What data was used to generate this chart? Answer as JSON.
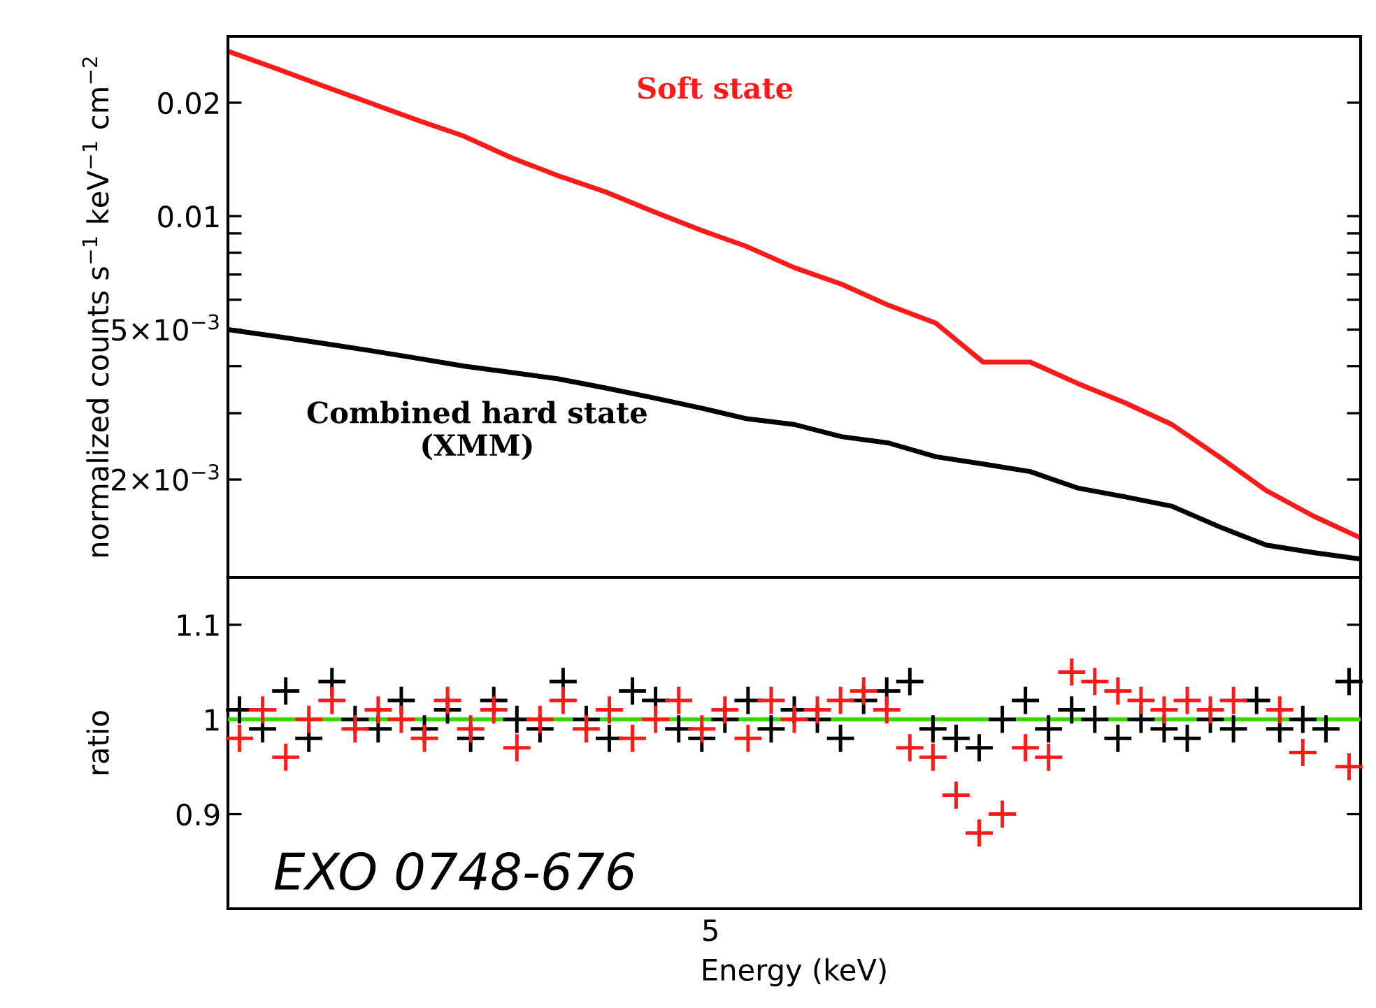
{
  "chart_data": [
    {
      "type": "line",
      "ylabel": "normalized counts s$^{−1}$ keV$^{−1}$ cm$^{−2}$",
      "log": "y",
      "tick_labels": "y",
      "marker": "none",
      "line_style": "solid",
      "categories": [
        null,
        null,
        null,
        null,
        null,
        null,
        null,
        null,
        null,
        null,
        null,
        null,
        null,
        null,
        null,
        null,
        null,
        null,
        null,
        null,
        null,
        null,
        null,
        null,
        null
      ],
      "ylim": [
        0.0011,
        0.03
      ],
      "yticks": [
        {
          "value": 0.002,
          "label": "2×10$^{−3}$"
        },
        {
          "value": 0.003,
          "label": null
        },
        {
          "value": 0.004,
          "label": null
        },
        {
          "value": 0.005,
          "label": "5×10$^{−3}$"
        },
        {
          "value": 0.006,
          "label": null
        },
        {
          "value": 0.007,
          "label": null
        },
        {
          "value": 0.008,
          "label": null
        },
        {
          "value": 0.009,
          "label": null
        },
        {
          "value": 0.01,
          "label": "0.01"
        },
        {
          "value": 0.02,
          "label": "0.02"
        }
      ],
      "series": [
        {
          "name": "Soft state",
          "color": "#ff1a1a",
          "values": [
            0.0274,
            0.0247,
            0.0222,
            0.02,
            0.018,
            0.0163,
            0.0143,
            0.0128,
            0.0116,
            0.0103,
            0.0092,
            0.0083,
            0.0073,
            0.0066,
            0.0058,
            0.0052,
            0.0041,
            0.0041,
            0.0036,
            0.0032,
            0.0028,
            0.0023,
            0.00187,
            0.0016,
            0.0014
          ]
        },
        {
          "name": "Combined hard state (XMM)",
          "color": "#000000",
          "values": [
            0.005,
            0.0048,
            0.0046,
            0.0044,
            0.0042,
            0.004,
            0.00385,
            0.0037,
            0.0035,
            0.0033,
            0.0031,
            0.0029,
            0.0028,
            0.0026,
            0.0025,
            0.0023,
            0.0022,
            0.0021,
            0.0019,
            0.0018,
            0.0017,
            0.0015,
            0.00134,
            0.00128,
            0.00123
          ]
        }
      ]
    },
    {
      "type": "scatter",
      "xlabel": "Energy (keV)",
      "ylabel": "ratio",
      "marker": "cross",
      "categories": [
        null,
        null,
        null,
        null,
        null,
        null,
        null,
        null,
        null,
        null,
        null,
        null,
        null,
        null,
        null,
        null,
        null,
        null,
        null,
        null,
        null,
        null,
        null,
        null,
        null,
        null,
        null,
        null,
        null,
        null,
        null,
        null,
        null,
        null,
        null,
        null,
        null,
        null,
        null,
        null,
        null,
        null,
        null,
        null,
        null,
        null,
        null,
        null,
        null
      ],
      "ylim": [
        0.8,
        1.15
      ],
      "yticks": [
        0.9,
        1,
        1.1
      ],
      "ref_lines": [
        {
          "axis": "y",
          "value": 1,
          "color": "#33dd00"
        }
      ],
      "annotations": [
        "EXO 0748-676",
        "5"
      ],
      "series": [
        {
          "color": "#000000",
          "values": [
            1.01,
            0.99,
            1.03,
            0.98,
            1.04,
            1.0,
            0.99,
            1.02,
            0.99,
            1.01,
            0.98,
            1.02,
            1.0,
            0.99,
            1.04,
            1.0,
            0.98,
            1.03,
            1.02,
            0.99,
            0.98,
            1.0,
            1.02,
            0.99,
            1.01,
            1.0,
            0.98,
            1.02,
            1.03,
            1.04,
            0.99,
            0.98,
            0.97,
            1.0,
            1.02,
            0.99,
            1.01,
            1.0,
            0.98,
            1.0,
            0.99,
            0.98,
            1.0,
            0.99,
            1.02,
            0.99,
            1.0,
            0.99,
            1.04
          ]
        },
        {
          "color": "#ff1a1a",
          "values": [
            0.98,
            1.01,
            0.96,
            1.0,
            1.02,
            0.99,
            1.01,
            1.0,
            0.98,
            1.02,
            0.99,
            1.01,
            0.97,
            1.0,
            1.02,
            0.99,
            1.01,
            0.98,
            1.0,
            1.02,
            0.99,
            1.01,
            0.98,
            1.02,
            1.0,
            1.01,
            1.02,
            1.03,
            1.01,
            0.97,
            0.96,
            0.92,
            0.88,
            0.9,
            0.97,
            0.96,
            1.05,
            1.04,
            1.03,
            1.02,
            1.01,
            1.02,
            1.01,
            1.02,
            null,
            1.01,
            0.965,
            null,
            0.95
          ]
        }
      ]
    }
  ]
}
